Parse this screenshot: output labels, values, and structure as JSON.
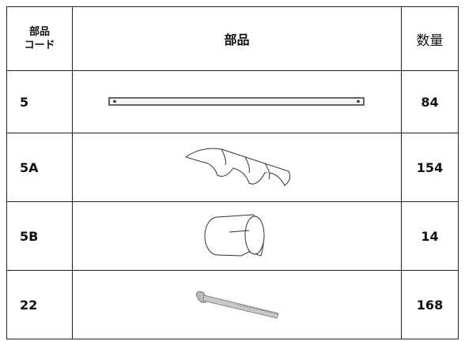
{
  "table": {
    "header": {
      "code": [
        "部品",
        "コード"
      ],
      "part": "部品",
      "qty": "数量"
    },
    "rows": [
      {
        "code": "5",
        "qty": "84"
      },
      {
        "code": "5A",
        "qty": "154"
      },
      {
        "code": "5B",
        "qty": "14"
      },
      {
        "code": "22",
        "qty": "168"
      }
    ]
  }
}
